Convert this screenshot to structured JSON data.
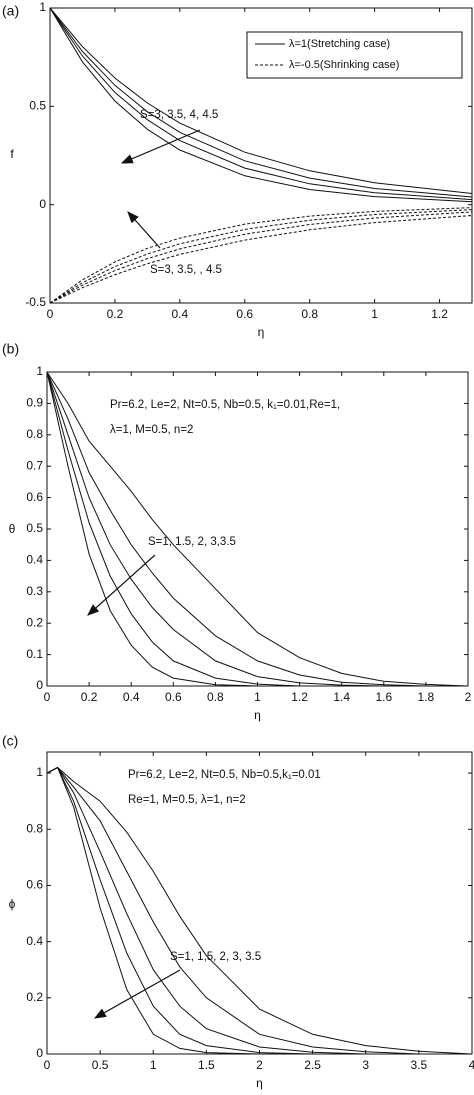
{
  "chart_data": [
    {
      "type": "line",
      "panel_label": "(a)",
      "xlabel": "η",
      "ylabel": "f",
      "x": [
        0,
        0.1,
        0.2,
        0.3,
        0.4,
        0.6,
        0.8,
        1.0,
        1.3
      ],
      "xlim": [
        0,
        1.3
      ],
      "ylim": [
        -0.5,
        1
      ],
      "xticks": [
        0,
        0.2,
        0.4,
        0.6,
        0.8,
        1,
        1.2
      ],
      "yticks": [
        -0.5,
        0,
        0.5,
        1
      ],
      "series": [
        {
          "name": "λ=1(Stretching case)",
          "style": "solid",
          "color": "#111111",
          "values": [
            1,
            0.803,
            0.644,
            0.517,
            0.415,
            0.267,
            0.172,
            0.111,
            0.057
          ]
        },
        {
          "style": "solid",
          "color": "#111111",
          "values": [
            1,
            0.779,
            0.607,
            0.472,
            0.368,
            0.223,
            0.135,
            0.082,
            0.039
          ]
        },
        {
          "style": "solid",
          "color": "#111111",
          "values": [
            1,
            0.756,
            0.571,
            0.432,
            0.326,
            0.186,
            0.106,
            0.061,
            0.026
          ]
        },
        {
          "style": "solid",
          "color": "#111111",
          "values": [
            1,
            0.726,
            0.527,
            0.383,
            0.278,
            0.147,
            0.077,
            0.041,
            0.015
          ]
        },
        {
          "name": "λ=-0.5(Shrinking case)",
          "style": "dashed",
          "color": "#111111",
          "values": [
            -0.5,
            -0.422,
            -0.356,
            -0.3,
            -0.253,
            -0.18,
            -0.128,
            -0.091,
            -0.055
          ]
        },
        {
          "style": "dashed",
          "color": "#111111",
          "values": [
            -0.5,
            -0.409,
            -0.335,
            -0.274,
            -0.225,
            -0.15,
            -0.101,
            -0.068,
            -0.037
          ]
        },
        {
          "style": "dashed",
          "color": "#111111",
          "values": [
            -0.5,
            -0.397,
            -0.315,
            -0.251,
            -0.199,
            -0.126,
            -0.079,
            -0.05,
            -0.025
          ]
        },
        {
          "style": "dashed",
          "color": "#111111",
          "values": [
            -0.5,
            -0.382,
            -0.291,
            -0.222,
            -0.17,
            -0.099,
            -0.058,
            -0.034,
            -0.015
          ]
        }
      ],
      "annotations": [
        "S=3, 3.5, 4, 4.5",
        "S=3, 3.5, , 4.5"
      ]
    },
    {
      "type": "line",
      "panel_label": "(b)",
      "xlabel": "η",
      "ylabel": "θ",
      "x": [
        0,
        0.1,
        0.2,
        0.3,
        0.4,
        0.5,
        0.6,
        0.8,
        1.0,
        1.2,
        1.4,
        1.6,
        1.8,
        2.0
      ],
      "xlim": [
        0,
        2
      ],
      "ylim": [
        0,
        1
      ],
      "xticks": [
        0,
        0.2,
        0.4,
        0.6,
        0.8,
        1,
        1.2,
        1.4,
        1.6,
        1.8,
        2
      ],
      "yticks": [
        0,
        0.1,
        0.2,
        0.3,
        0.4,
        0.5,
        0.6,
        0.7,
        0.8,
        0.9,
        1
      ],
      "series": [
        {
          "style": "solid",
          "color": "#111111",
          "values": [
            1,
            0.9,
            0.78,
            0.7,
            0.62,
            0.53,
            0.45,
            0.31,
            0.17,
            0.09,
            0.04,
            0.015,
            0.005,
            0
          ]
        },
        {
          "style": "solid",
          "color": "#111111",
          "values": [
            1,
            0.85,
            0.68,
            0.56,
            0.45,
            0.36,
            0.28,
            0.16,
            0.08,
            0.035,
            0.012,
            0.004,
            0,
            0
          ]
        },
        {
          "style": "solid",
          "color": "#111111",
          "values": [
            1,
            0.8,
            0.6,
            0.45,
            0.34,
            0.25,
            0.18,
            0.08,
            0.03,
            0.01,
            0.003,
            0,
            0,
            0
          ]
        },
        {
          "style": "solid",
          "color": "#111111",
          "values": [
            1,
            0.75,
            0.52,
            0.35,
            0.23,
            0.14,
            0.08,
            0.025,
            0.006,
            0,
            0,
            0,
            0,
            0
          ]
        },
        {
          "style": "solid",
          "color": "#111111",
          "values": [
            1,
            0.7,
            0.42,
            0.24,
            0.13,
            0.06,
            0.025,
            0.004,
            0,
            0,
            0,
            0,
            0,
            0
          ]
        }
      ],
      "annotations": [
        "Pr=6.2, Le=2, Nt=0.5, Nb=0.5, k₁=0.01,Re=1,",
        "λ=1, M=0.5, n=2",
        "S=1, 1.5, 2, 3,3.5"
      ]
    },
    {
      "type": "line",
      "panel_label": "(c)",
      "xlabel": "η",
      "ylabel": "ϕ",
      "x": [
        0,
        0.1,
        0.25,
        0.5,
        0.75,
        1,
        1.25,
        1.5,
        2,
        2.5,
        3,
        3.5,
        4
      ],
      "xlim": [
        0,
        4
      ],
      "ylim": [
        0,
        1.075
      ],
      "xticks": [
        0,
        0.5,
        1,
        1.5,
        2,
        2.5,
        3,
        3.5,
        4
      ],
      "yticks": [
        0,
        0.2,
        0.4,
        0.6,
        0.8,
        1
      ],
      "series": [
        {
          "style": "solid",
          "color": "#111111",
          "values": [
            1,
            1.02,
            0.97,
            0.9,
            0.79,
            0.65,
            0.49,
            0.35,
            0.16,
            0.07,
            0.03,
            0.01,
            0
          ]
        },
        {
          "style": "solid",
          "color": "#111111",
          "values": [
            1,
            1.02,
            0.95,
            0.83,
            0.65,
            0.47,
            0.31,
            0.2,
            0.07,
            0.025,
            0.008,
            0,
            0
          ]
        },
        {
          "style": "solid",
          "color": "#111111",
          "values": [
            1,
            1.02,
            0.93,
            0.72,
            0.5,
            0.3,
            0.17,
            0.09,
            0.025,
            0.006,
            0,
            0,
            0
          ]
        },
        {
          "style": "solid",
          "color": "#111111",
          "values": [
            1,
            1.02,
            0.9,
            0.62,
            0.36,
            0.17,
            0.07,
            0.03,
            0.005,
            0,
            0,
            0,
            0
          ]
        },
        {
          "style": "solid",
          "color": "#111111",
          "values": [
            1,
            1.02,
            0.88,
            0.52,
            0.23,
            0.07,
            0.02,
            0.005,
            0,
            0,
            0,
            0,
            0
          ]
        }
      ],
      "annotations": [
        "Pr=6.2, Le=2, Nt=0.5, Nb=0.5,k₁=0.01",
        "Re=1, M=0.5, λ=1, n=2",
        "S=1, 1,5,  2,  3,  3.5"
      ]
    }
  ]
}
